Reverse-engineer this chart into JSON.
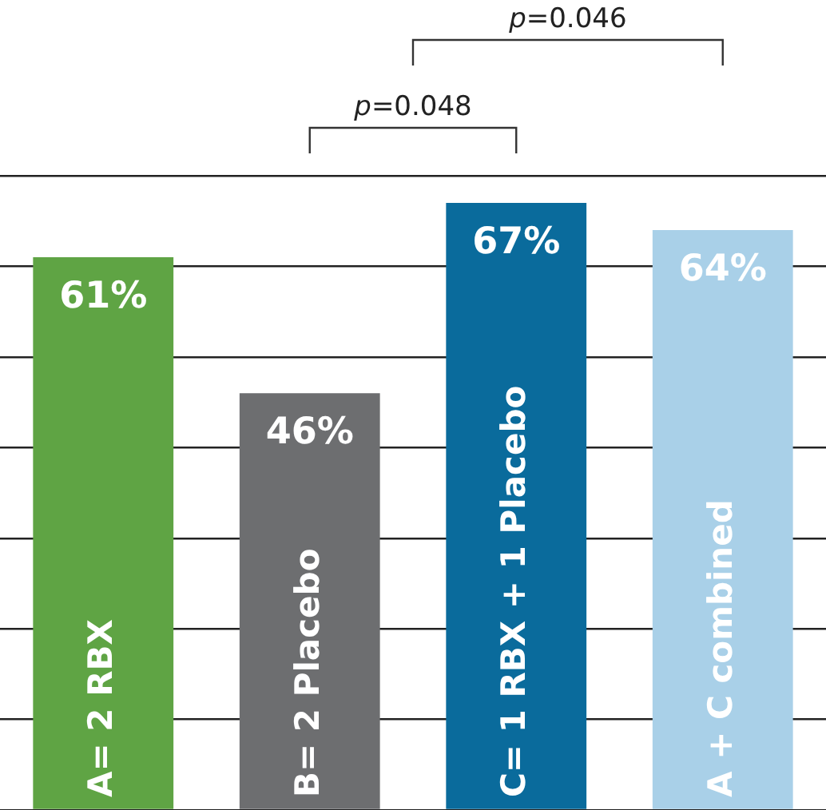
{
  "chart_data": {
    "type": "bar",
    "categories": [
      "A= 2 RBX",
      "B= 2 Placebo",
      "C= 1 RBX + 1 Placebo",
      "A + C combined"
    ],
    "values": [
      61,
      46,
      67,
      64
    ],
    "colors": [
      "#5fa444",
      "#6d6e70",
      "#0a6b9c",
      "#a9d0e8"
    ],
    "value_labels": [
      "61%",
      "46%",
      "67%",
      "64%"
    ],
    "grid": "y",
    "tick_labels": false,
    "legend": false,
    "annotations": [
      "p=0.048",
      "p=0.046"
    ]
  }
}
